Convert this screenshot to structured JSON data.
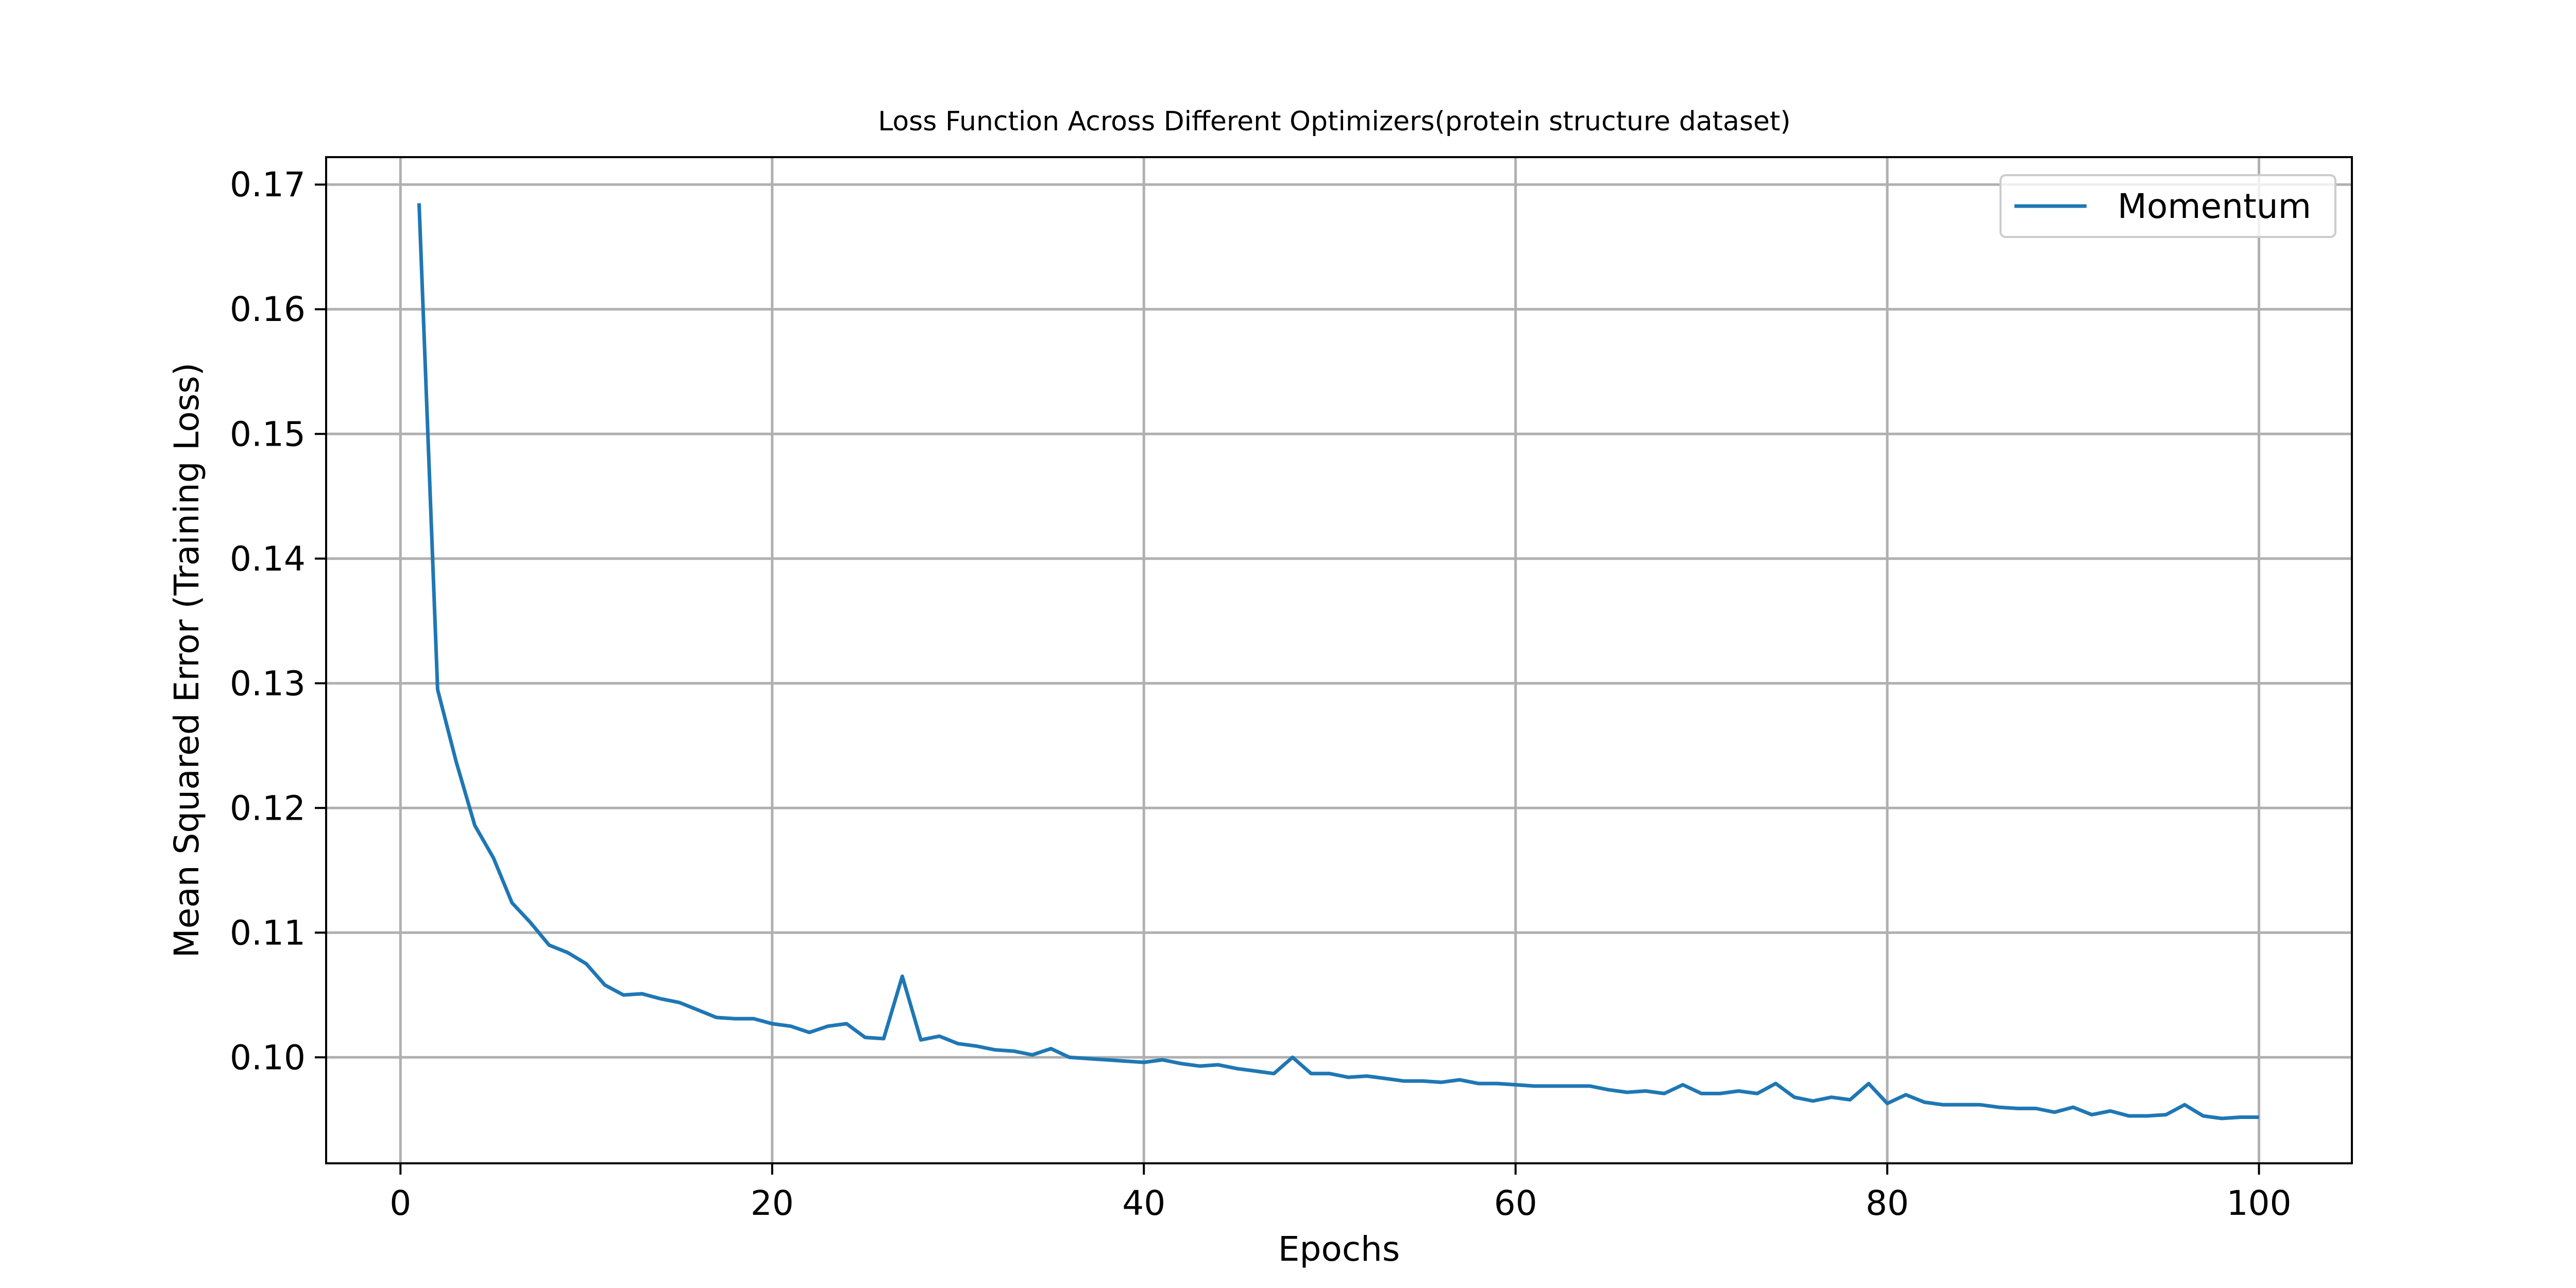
{
  "chart_data": {
    "type": "line",
    "title": "Loss Function Across Different Optimizers(protein structure dataset)",
    "xlabel": "Epochs",
    "ylabel": "Mean Squared Error (Training Loss)",
    "xlim": [
      -4,
      105
    ],
    "ylim": [
      0.0915,
      0.1722
    ],
    "xticks": [
      0,
      20,
      40,
      60,
      80,
      100
    ],
    "xtick_labels": [
      "0",
      "20",
      "40",
      "60",
      "80",
      "100"
    ],
    "yticks": [
      0.1,
      0.11,
      0.12,
      0.13,
      0.14,
      0.15,
      0.16,
      0.17
    ],
    "ytick_labels": [
      "0.10",
      "0.11",
      "0.12",
      "0.13",
      "0.14",
      "0.15",
      "0.16",
      "0.17"
    ],
    "grid": true,
    "legend_position": "top-right",
    "series": [
      {
        "name": "Momentum",
        "color": "#1f77b4",
        "x": [
          1,
          2,
          3,
          4,
          5,
          6,
          7,
          8,
          9,
          10,
          11,
          12,
          13,
          14,
          15,
          16,
          17,
          18,
          19,
          20,
          21,
          22,
          23,
          24,
          25,
          26,
          27,
          28,
          29,
          30,
          31,
          32,
          33,
          34,
          35,
          36,
          37,
          38,
          39,
          40,
          41,
          42,
          43,
          44,
          45,
          46,
          47,
          48,
          49,
          50,
          51,
          52,
          53,
          54,
          55,
          56,
          57,
          58,
          59,
          60,
          61,
          62,
          63,
          64,
          65,
          66,
          67,
          68,
          69,
          70,
          71,
          72,
          73,
          74,
          75,
          76,
          77,
          78,
          79,
          80,
          81,
          82,
          83,
          84,
          85,
          86,
          87,
          88,
          89,
          90,
          91,
          92,
          93,
          94,
          95,
          96,
          97,
          98,
          99,
          100
        ],
        "values": [
          0.1685,
          0.1295,
          0.1237,
          0.1186,
          0.116,
          0.1124,
          0.1108,
          0.109,
          0.1084,
          0.1075,
          0.1058,
          0.105,
          0.1051,
          0.1047,
          0.1044,
          0.1038,
          0.1032,
          0.1031,
          0.1031,
          0.1027,
          0.1025,
          0.102,
          0.1025,
          0.1027,
          0.1016,
          0.1015,
          0.1065,
          0.1014,
          0.1017,
          0.1011,
          0.1009,
          0.1006,
          0.1005,
          0.1002,
          0.1007,
          0.1,
          0.0999,
          0.0998,
          0.0997,
          0.0996,
          0.0998,
          0.0995,
          0.0993,
          0.0994,
          0.0991,
          0.0989,
          0.0987,
          0.1,
          0.0987,
          0.0987,
          0.0984,
          0.0985,
          0.0983,
          0.0981,
          0.0981,
          0.098,
          0.0982,
          0.0979,
          0.0979,
          0.0978,
          0.0977,
          0.0977,
          0.0977,
          0.0977,
          0.0974,
          0.0972,
          0.0973,
          0.0971,
          0.0978,
          0.0971,
          0.0971,
          0.0973,
          0.0971,
          0.0979,
          0.0968,
          0.0965,
          0.0968,
          0.0966,
          0.0979,
          0.0963,
          0.097,
          0.0964,
          0.0962,
          0.0962,
          0.0962,
          0.096,
          0.0959,
          0.0959,
          0.0956,
          0.096,
          0.0954,
          0.0957,
          0.0953,
          0.0953,
          0.0954,
          0.0962,
          0.0953,
          0.0951,
          0.0952,
          0.0952
        ]
      }
    ]
  }
}
